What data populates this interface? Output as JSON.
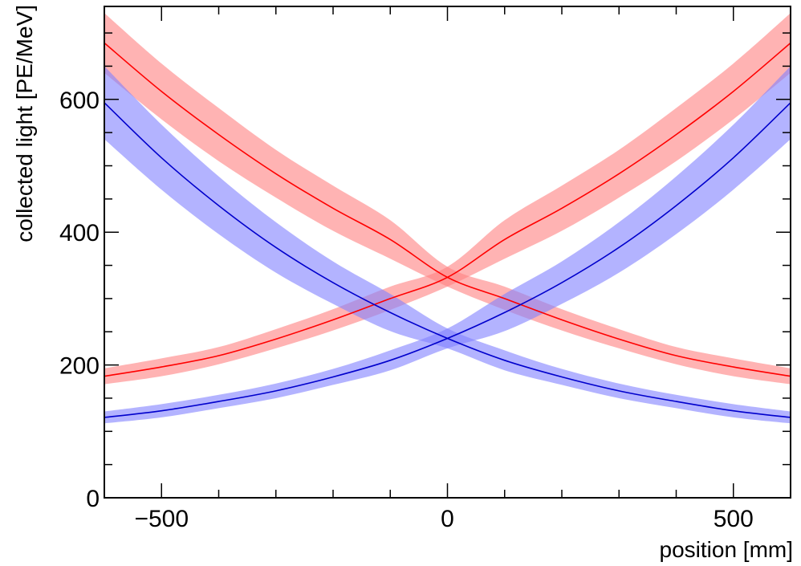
{
  "chart_data": {
    "type": "line",
    "title": "",
    "xlabel": "position [mm]",
    "ylabel": "collected light [PE/MeV]",
    "xlim": [
      -600,
      600
    ],
    "ylim": [
      0,
      740
    ],
    "x_ticks": [
      -500,
      0,
      500
    ],
    "y_ticks": [
      0,
      200,
      400,
      600
    ],
    "x_tick_labels": [
      "−500",
      "0",
      "500"
    ],
    "y_tick_labels": [
      "0",
      "200",
      "400",
      "600"
    ],
    "grid": false,
    "legend": "none",
    "series": [
      {
        "color": "#ff0000",
        "band_color": "#ff8080",
        "x": [
          -600,
          -500,
          -400,
          -300,
          -200,
          -100,
          0,
          100,
          200,
          300,
          400,
          500,
          600
        ],
        "y": [
          685,
          612,
          547,
          488,
          436,
          389,
          332,
          300,
          268,
          239,
          214,
          197,
          183
        ],
        "band_low": [
          640,
          570,
          507,
          452,
          402,
          360,
          318,
          283,
          252,
          225,
          201,
          183,
          171
        ],
        "band_high": [
          730,
          654,
          587,
          524,
          470,
          418,
          348,
          318,
          284,
          254,
          227,
          210,
          195
        ]
      },
      {
        "color": "#ff0000",
        "band_color": "#ff8080",
        "x": [
          -600,
          -500,
          -400,
          -300,
          -200,
          -100,
          0,
          100,
          200,
          300,
          400,
          500,
          600
        ],
        "y": [
          183,
          197,
          214,
          239,
          268,
          300,
          332,
          389,
          436,
          488,
          547,
          612,
          685
        ],
        "band_low": [
          171,
          183,
          201,
          225,
          252,
          283,
          318,
          360,
          402,
          452,
          507,
          570,
          640
        ],
        "band_high": [
          195,
          210,
          227,
          254,
          284,
          318,
          348,
          418,
          470,
          524,
          587,
          654,
          730
        ]
      },
      {
        "color": "#0000cc",
        "band_color": "#8080ff",
        "x": [
          -600,
          -500,
          -400,
          -300,
          -200,
          -100,
          0,
          100,
          200,
          300,
          400,
          500,
          600
        ],
        "y": [
          595,
          512,
          440,
          377,
          324,
          279,
          240,
          207,
          182,
          161,
          145,
          131,
          121
        ],
        "band_low": [
          540,
          464,
          397,
          339,
          292,
          251,
          225,
          192,
          170,
          150,
          135,
          121,
          112
        ],
        "band_high": [
          650,
          562,
          484,
          415,
          356,
          307,
          255,
          222,
          194,
          172,
          155,
          141,
          130
        ]
      },
      {
        "color": "#0000cc",
        "band_color": "#8080ff",
        "x": [
          -600,
          -500,
          -400,
          -300,
          -200,
          -100,
          0,
          100,
          200,
          300,
          400,
          500,
          600
        ],
        "y": [
          121,
          131,
          145,
          161,
          182,
          207,
          240,
          279,
          324,
          377,
          440,
          512,
          595
        ],
        "band_low": [
          112,
          121,
          135,
          150,
          170,
          192,
          225,
          251,
          292,
          339,
          397,
          464,
          540
        ],
        "band_high": [
          130,
          141,
          155,
          172,
          194,
          222,
          255,
          307,
          356,
          415,
          484,
          562,
          650
        ]
      }
    ]
  }
}
